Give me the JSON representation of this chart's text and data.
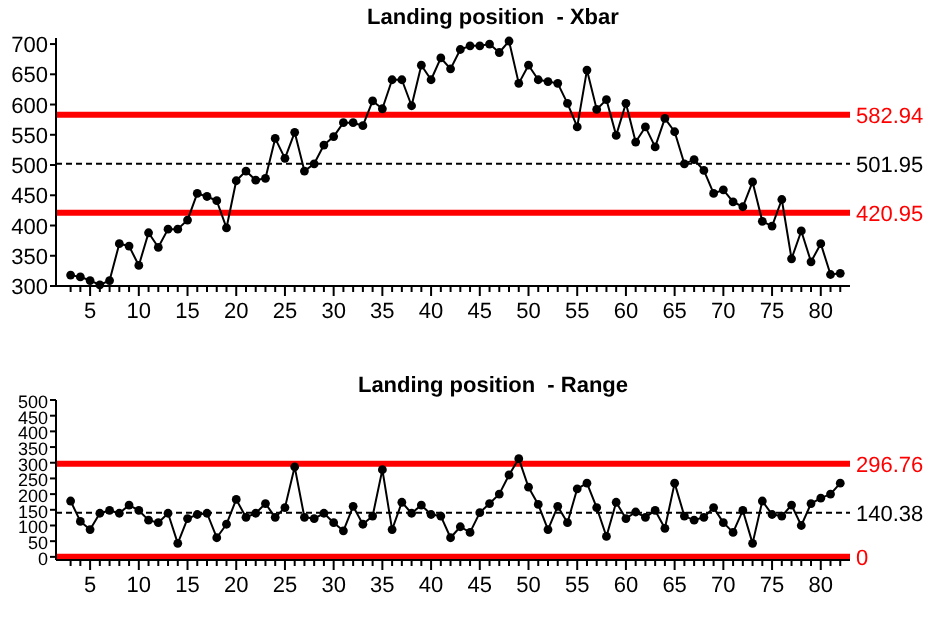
{
  "chart_data": [
    {
      "type": "line",
      "title": "Landing position  - Xbar",
      "marker": "circle",
      "grid": false,
      "x": [
        3,
        4,
        5,
        6,
        7,
        8,
        9,
        10,
        11,
        12,
        13,
        14,
        15,
        16,
        17,
        18,
        19,
        20,
        21,
        22,
        23,
        24,
        25,
        26,
        27,
        28,
        29,
        30,
        31,
        32,
        33,
        34,
        35,
        36,
        37,
        38,
        39,
        40,
        41,
        42,
        43,
        44,
        45,
        46,
        47,
        48,
        49,
        50,
        51,
        52,
        53,
        54,
        55,
        56,
        57,
        58,
        59,
        60,
        61,
        62,
        63,
        64,
        65,
        66,
        67,
        68,
        69,
        70,
        71,
        72,
        73,
        74,
        75,
        76,
        77,
        78,
        79,
        80,
        81,
        82
      ],
      "series": [
        {
          "color": "#000000",
          "values": [
            318,
            315,
            309,
            302,
            309,
            370,
            366,
            334,
            388,
            364,
            394,
            394,
            409,
            453,
            448,
            441,
            396,
            474,
            490,
            475,
            478,
            544,
            511,
            554,
            490,
            502,
            533,
            547,
            570,
            570,
            565,
            606,
            593,
            641,
            641,
            598,
            665,
            641,
            677,
            659,
            691,
            697,
            697,
            700,
            686,
            705,
            635,
            665,
            641,
            638,
            635,
            602,
            563,
            657,
            592,
            608,
            549,
            602,
            538,
            563,
            530,
            577,
            555,
            502,
            509,
            491,
            453,
            459,
            439,
            431,
            472,
            407,
            399,
            443,
            345,
            391,
            340,
            370,
            319,
            321
          ]
        }
      ],
      "xlim": [
        1.5,
        83
      ],
      "xticks": [
        {
          "value": 3,
          "label": null
        },
        {
          "value": 4,
          "label": null
        },
        5,
        {
          "value": 6,
          "label": null
        },
        {
          "value": 7,
          "label": null
        },
        {
          "value": 8,
          "label": null
        },
        {
          "value": 9,
          "label": null
        },
        10,
        {
          "value": 11,
          "label": null
        },
        {
          "value": 12,
          "label": null
        },
        {
          "value": 13,
          "label": null
        },
        {
          "value": 14,
          "label": null
        },
        15,
        {
          "value": 16,
          "label": null
        },
        {
          "value": 17,
          "label": null
        },
        {
          "value": 18,
          "label": null
        },
        {
          "value": 19,
          "label": null
        },
        20,
        {
          "value": 21,
          "label": null
        },
        {
          "value": 22,
          "label": null
        },
        {
          "value": 23,
          "label": null
        },
        {
          "value": 24,
          "label": null
        },
        25,
        {
          "value": 26,
          "label": null
        },
        {
          "value": 27,
          "label": null
        },
        {
          "value": 28,
          "label": null
        },
        {
          "value": 29,
          "label": null
        },
        30,
        {
          "value": 31,
          "label": null
        },
        {
          "value": 32,
          "label": null
        },
        {
          "value": 33,
          "label": null
        },
        {
          "value": 34,
          "label": null
        },
        35,
        {
          "value": 36,
          "label": null
        },
        {
          "value": 37,
          "label": null
        },
        {
          "value": 38,
          "label": null
        },
        {
          "value": 39,
          "label": null
        },
        40,
        {
          "value": 41,
          "label": null
        },
        {
          "value": 42,
          "label": null
        },
        {
          "value": 43,
          "label": null
        },
        {
          "value": 44,
          "label": null
        },
        45,
        {
          "value": 46,
          "label": null
        },
        {
          "value": 47,
          "label": null
        },
        {
          "value": 48,
          "label": null
        },
        {
          "value": 49,
          "label": null
        },
        50,
        {
          "value": 51,
          "label": null
        },
        {
          "value": 52,
          "label": null
        },
        {
          "value": 53,
          "label": null
        },
        {
          "value": 54,
          "label": null
        },
        55,
        {
          "value": 56,
          "label": null
        },
        {
          "value": 57,
          "label": null
        },
        {
          "value": 58,
          "label": null
        },
        {
          "value": 59,
          "label": null
        },
        60,
        {
          "value": 61,
          "label": null
        },
        {
          "value": 62,
          "label": null
        },
        {
          "value": 63,
          "label": null
        },
        {
          "value": 64,
          "label": null
        },
        65,
        {
          "value": 66,
          "label": null
        },
        {
          "value": 67,
          "label": null
        },
        {
          "value": 68,
          "label": null
        },
        {
          "value": 69,
          "label": null
        },
        70,
        {
          "value": 71,
          "label": null
        },
        {
          "value": 72,
          "label": null
        },
        {
          "value": 73,
          "label": null
        },
        {
          "value": 74,
          "label": null
        },
        75,
        {
          "value": 76,
          "label": null
        },
        {
          "value": 77,
          "label": null
        },
        {
          "value": 78,
          "label": null
        },
        {
          "value": 79,
          "label": null
        },
        80,
        {
          "value": 81,
          "label": null
        },
        {
          "value": 82,
          "label": null
        }
      ],
      "ylim": [
        300,
        710
      ],
      "yticks": [
        300,
        350,
        400,
        450,
        500,
        550,
        600,
        650,
        700
      ],
      "ref_lines": [
        {
          "axis": "y",
          "value": 582.94,
          "label": "582.94",
          "color": "#ff0000",
          "line_style": "solid"
        },
        {
          "axis": "y",
          "value": 501.95,
          "label": "501.95",
          "color": "#000000",
          "line_style": "dashed"
        },
        {
          "axis": "y",
          "value": 420.95,
          "label": "420.95",
          "color": "#ff0000",
          "line_style": "solid"
        }
      ]
    },
    {
      "type": "line",
      "title": "Landing position  - Range",
      "marker": "circle",
      "grid": false,
      "x": [
        3,
        4,
        5,
        6,
        7,
        8,
        9,
        10,
        11,
        12,
        13,
        14,
        15,
        16,
        17,
        18,
        19,
        20,
        21,
        22,
        23,
        24,
        25,
        26,
        27,
        28,
        29,
        30,
        31,
        32,
        33,
        34,
        35,
        36,
        37,
        38,
        39,
        40,
        41,
        42,
        43,
        44,
        45,
        46,
        47,
        48,
        49,
        50,
        51,
        52,
        53,
        54,
        55,
        56,
        57,
        58,
        59,
        60,
        61,
        62,
        63,
        64,
        65,
        66,
        67,
        68,
        69,
        70,
        71,
        72,
        73,
        74,
        75,
        76,
        77,
        78,
        79,
        80,
        81,
        82
      ],
      "series": [
        {
          "color": "#000000",
          "values": [
            178,
            113,
            87,
            139,
            148,
            139,
            165,
            148,
            117,
            109,
            139,
            43,
            122,
            135,
            139,
            61,
            104,
            183,
            126,
            139,
            170,
            126,
            157,
            287,
            126,
            122,
            139,
            109,
            83,
            161,
            104,
            130,
            278,
            87,
            174,
            139,
            165,
            135,
            130,
            61,
            96,
            78,
            141,
            170,
            200,
            261,
            313,
            222,
            167,
            87,
            161,
            109,
            217,
            235,
            157,
            65,
            174,
            122,
            143,
            126,
            148,
            91,
            235,
            130,
            117,
            126,
            157,
            109,
            78,
            148,
            43,
            178,
            135,
            130,
            165,
            100,
            170,
            187,
            200,
            235
          ]
        }
      ],
      "xlim": [
        1.5,
        83
      ],
      "xticks": [
        {
          "value": 3,
          "label": null
        },
        {
          "value": 4,
          "label": null
        },
        5,
        {
          "value": 6,
          "label": null
        },
        {
          "value": 7,
          "label": null
        },
        {
          "value": 8,
          "label": null
        },
        {
          "value": 9,
          "label": null
        },
        10,
        {
          "value": 11,
          "label": null
        },
        {
          "value": 12,
          "label": null
        },
        {
          "value": 13,
          "label": null
        },
        {
          "value": 14,
          "label": null
        },
        15,
        {
          "value": 16,
          "label": null
        },
        {
          "value": 17,
          "label": null
        },
        {
          "value": 18,
          "label": null
        },
        {
          "value": 19,
          "label": null
        },
        20,
        {
          "value": 21,
          "label": null
        },
        {
          "value": 22,
          "label": null
        },
        {
          "value": 23,
          "label": null
        },
        {
          "value": 24,
          "label": null
        },
        25,
        {
          "value": 26,
          "label": null
        },
        {
          "value": 27,
          "label": null
        },
        {
          "value": 28,
          "label": null
        },
        {
          "value": 29,
          "label": null
        },
        30,
        {
          "value": 31,
          "label": null
        },
        {
          "value": 32,
          "label": null
        },
        {
          "value": 33,
          "label": null
        },
        {
          "value": 34,
          "label": null
        },
        35,
        {
          "value": 36,
          "label": null
        },
        {
          "value": 37,
          "label": null
        },
        {
          "value": 38,
          "label": null
        },
        {
          "value": 39,
          "label": null
        },
        40,
        {
          "value": 41,
          "label": null
        },
        {
          "value": 42,
          "label": null
        },
        {
          "value": 43,
          "label": null
        },
        {
          "value": 44,
          "label": null
        },
        45,
        {
          "value": 46,
          "label": null
        },
        {
          "value": 47,
          "label": null
        },
        {
          "value": 48,
          "label": null
        },
        {
          "value": 49,
          "label": null
        },
        50,
        {
          "value": 51,
          "label": null
        },
        {
          "value": 52,
          "label": null
        },
        {
          "value": 53,
          "label": null
        },
        {
          "value": 54,
          "label": null
        },
        55,
        {
          "value": 56,
          "label": null
        },
        {
          "value": 57,
          "label": null
        },
        {
          "value": 58,
          "label": null
        },
        {
          "value": 59,
          "label": null
        },
        60,
        {
          "value": 61,
          "label": null
        },
        {
          "value": 62,
          "label": null
        },
        {
          "value": 63,
          "label": null
        },
        {
          "value": 64,
          "label": null
        },
        65,
        {
          "value": 66,
          "label": null
        },
        {
          "value": 67,
          "label": null
        },
        {
          "value": 68,
          "label": null
        },
        {
          "value": 69,
          "label": null
        },
        70,
        {
          "value": 71,
          "label": null
        },
        {
          "value": 72,
          "label": null
        },
        {
          "value": 73,
          "label": null
        },
        {
          "value": 74,
          "label": null
        },
        75,
        {
          "value": 76,
          "label": null
        },
        {
          "value": 77,
          "label": null
        },
        {
          "value": 78,
          "label": null
        },
        {
          "value": 79,
          "label": null
        },
        80,
        {
          "value": 81,
          "label": null
        },
        {
          "value": 82,
          "label": null
        }
      ],
      "ylim": [
        -10,
        500
      ],
      "yticks": [
        0,
        50,
        100,
        150,
        200,
        250,
        300,
        350,
        400,
        450,
        500
      ],
      "ref_lines": [
        {
          "axis": "y",
          "value": 296.76,
          "label": "296.76",
          "color": "#ff0000",
          "line_style": "solid"
        },
        {
          "axis": "y",
          "value": 140.38,
          "label": "140.38",
          "color": "#000000",
          "line_style": "dashed"
        },
        {
          "axis": "y",
          "value": 0,
          "label": "0",
          "color": "#ff0000",
          "line_style": "solid"
        }
      ]
    }
  ]
}
